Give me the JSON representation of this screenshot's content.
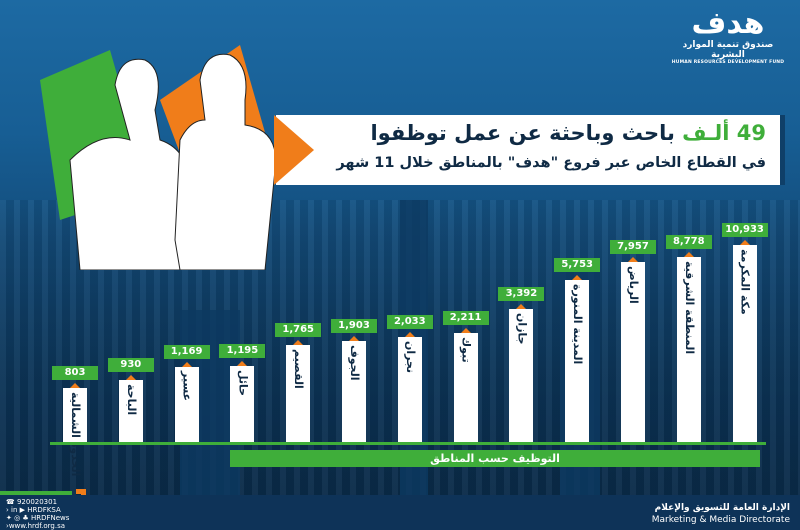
{
  "logo": {
    "mark": "هدف",
    "arabic": "صندوق تنمية الموارد البشرية",
    "english": "HUMAN RESOURCES DEVELOPMENT FUND"
  },
  "title": {
    "highlight": "49 ألـف",
    "line1": "باحث وباحثة عن عمل توظفوا",
    "line2": "في القطاع الخاص عبر فروع \"هدف\" بالمناطق خلال 11 شهر"
  },
  "chart_data": {
    "type": "bar",
    "title": "التوظيف حسب المناطق",
    "categories": [
      "الحدود الشمالية",
      "الباحة",
      "عسير",
      "حائل",
      "القصيم",
      "الجوف",
      "نجران",
      "تبوك",
      "جازان",
      "المدينة المنورة",
      "الرياض",
      "المنطقة الشرقية",
      "مكة المكرمة"
    ],
    "values": [
      803,
      930,
      1169,
      1195,
      1765,
      1903,
      2033,
      2211,
      3392,
      5753,
      7957,
      8778,
      10933
    ],
    "labels": [
      "803",
      "930",
      "1,169",
      "1,195",
      "1,765",
      "1,903",
      "2,033",
      "2,211",
      "3,392",
      "5,753",
      "7,957",
      "8,778",
      "10,933"
    ],
    "colors": {
      "bar": "#ffffff",
      "label_bg": "#3fae3a",
      "marker": "#f07d1a"
    }
  },
  "footer": {
    "phone": "920020301",
    "social1": "HRDFKSA",
    "social2": "HRDFNews",
    "website": "www.hrdf.org.sa",
    "dept_ar": "الإدارة العامة للتسويق والإعلام",
    "dept_en": "Marketing & Media Directorate"
  }
}
